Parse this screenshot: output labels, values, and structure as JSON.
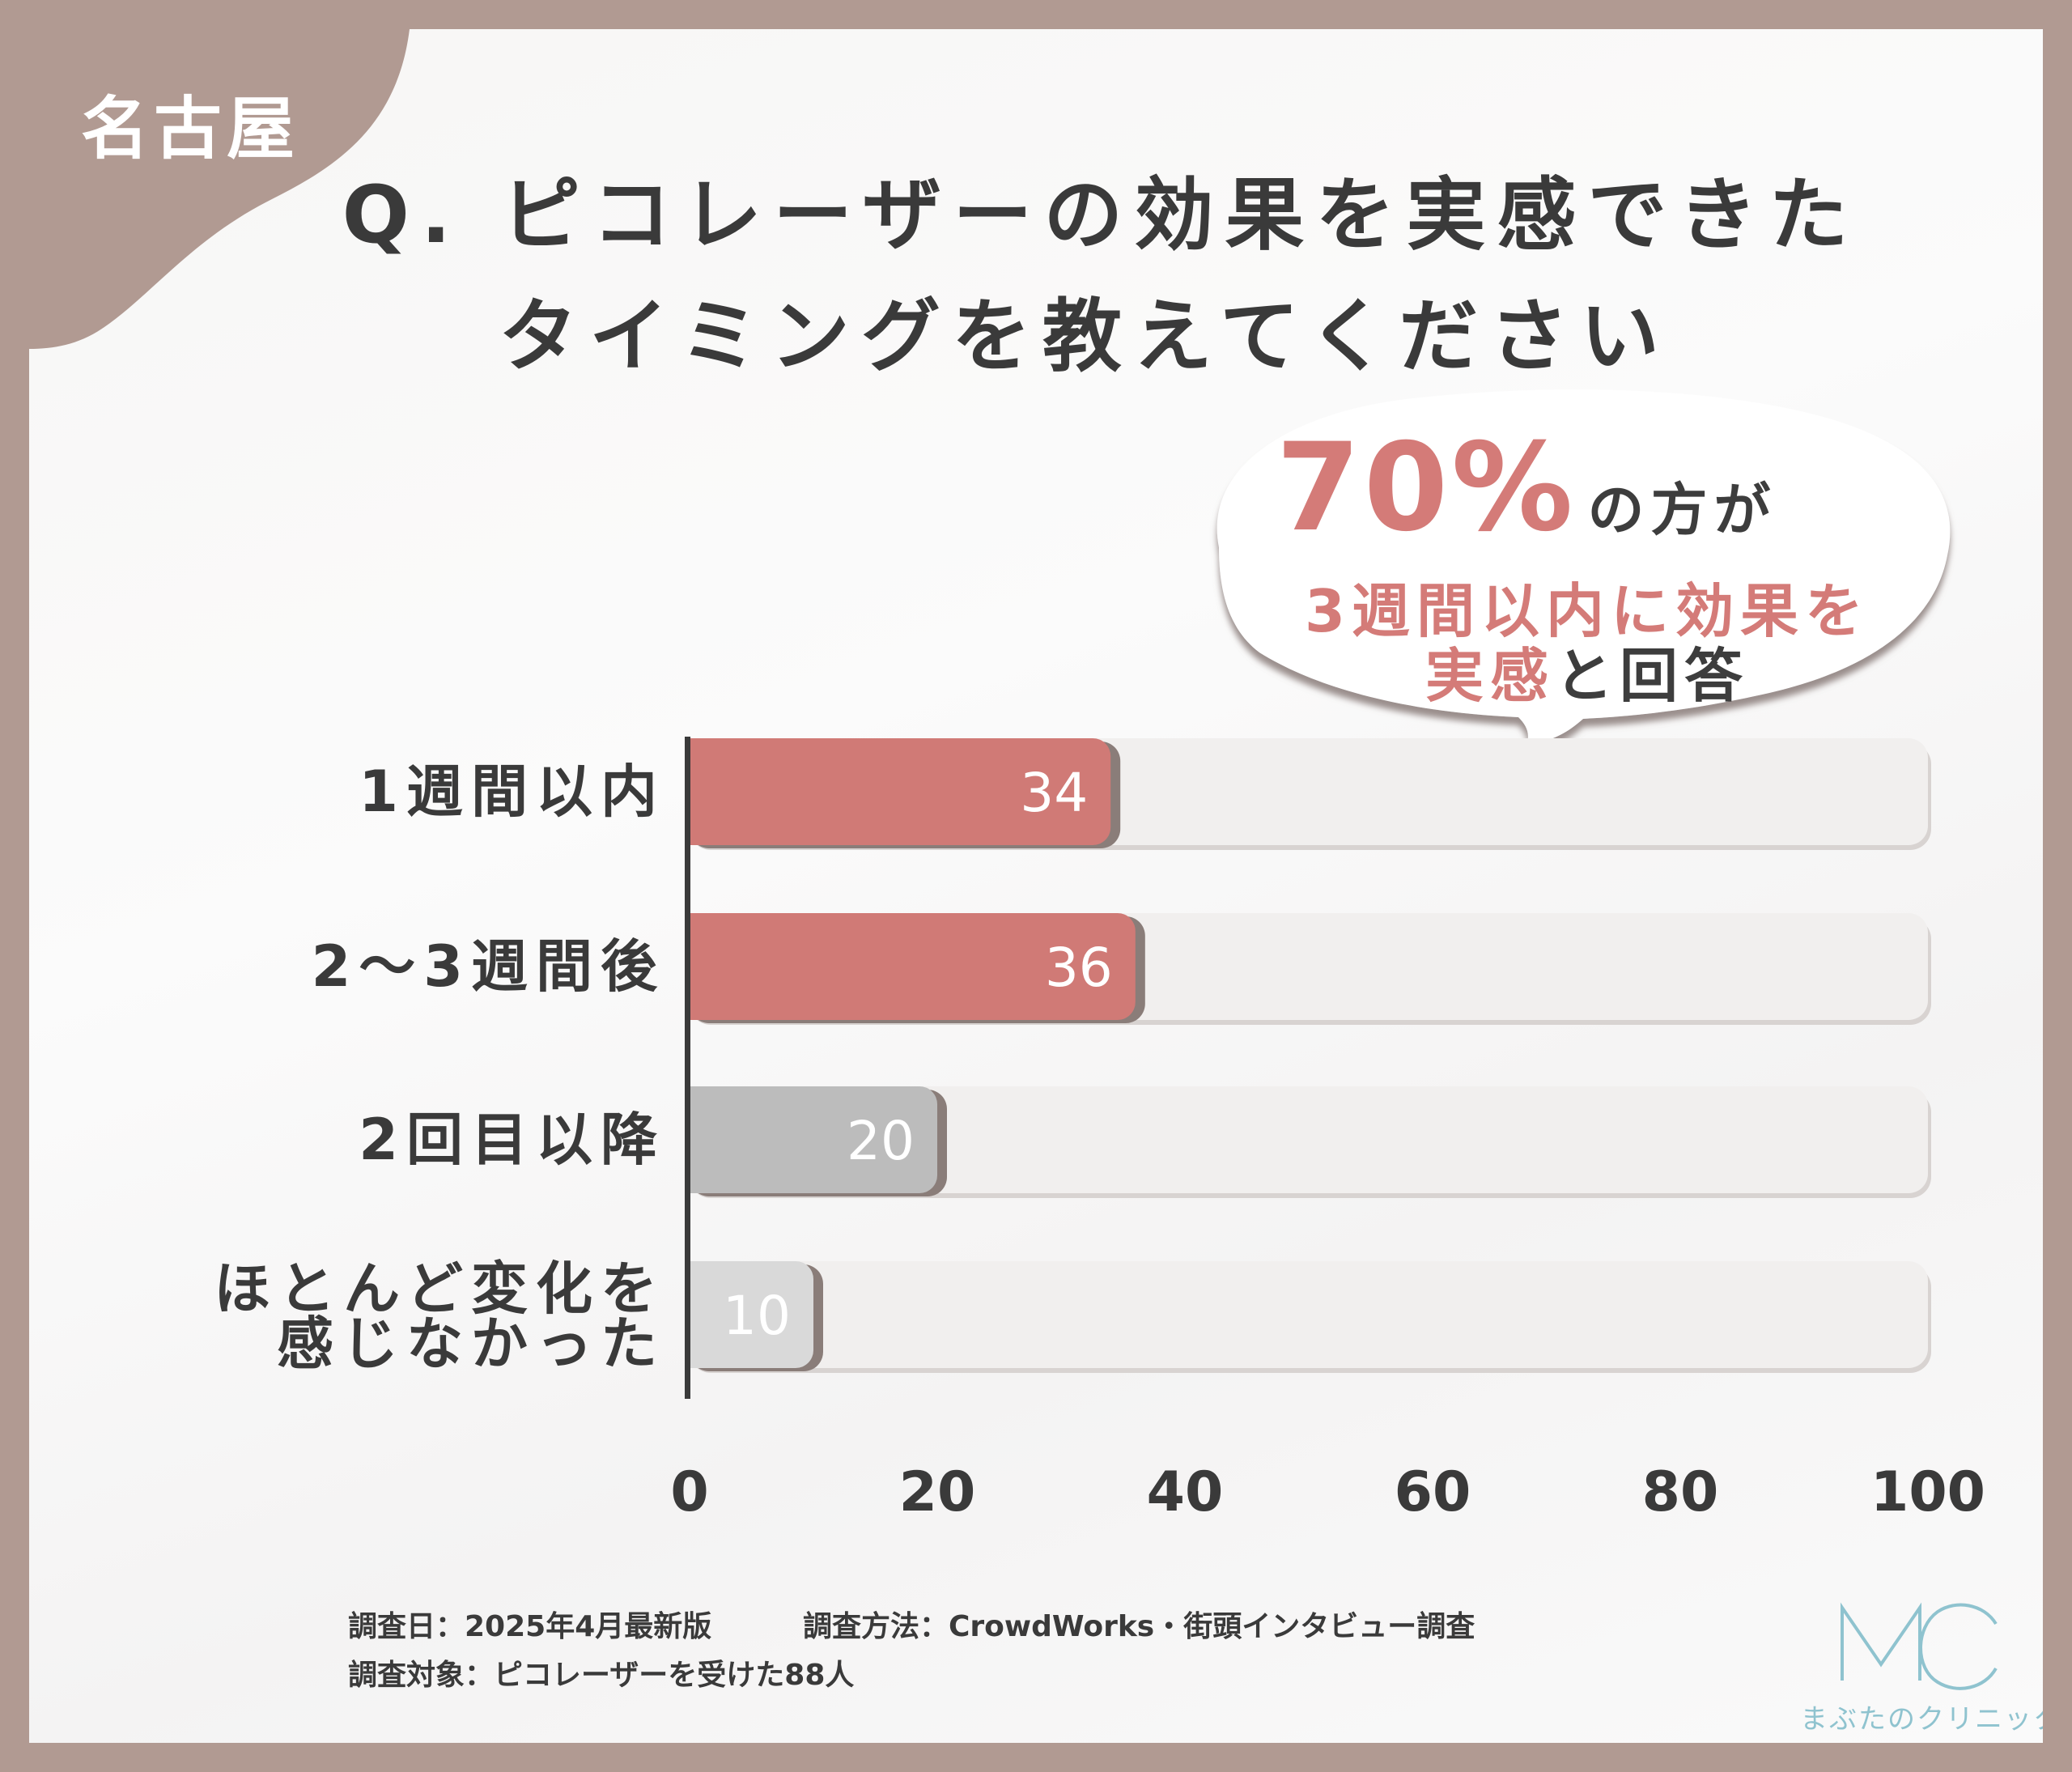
{
  "region_tag": "名古屋",
  "title": {
    "line1": "Q. ピコレーザーの効果を実感できた",
    "line2": "タイミングを教えてください"
  },
  "callout": {
    "percent": "70%",
    "percent_suffix": "の方が",
    "line2": "3週間以内に効果を",
    "line3_part1": "実感",
    "line3_part2": "と回答"
  },
  "chart_data": {
    "type": "bar",
    "orientation": "horizontal",
    "categories": [
      "1週間以内",
      "2〜3週間後",
      "2回目以降",
      "ほとんど変化を感じなかった"
    ],
    "category_label_lines": [
      [
        "1週間以内"
      ],
      [
        "2〜3週間後"
      ],
      [
        "2回目以降"
      ],
      [
        "ほとんど変化を",
        "感じなかった"
      ]
    ],
    "values": [
      34,
      36,
      20,
      10
    ],
    "bar_colors": [
      "#d07a76",
      "#d07a76",
      "#bcbcbc",
      "#d9d9d9"
    ],
    "value_labels": [
      "34",
      "36",
      "20",
      "10"
    ],
    "xlim": [
      0,
      100
    ],
    "x_ticks": [
      "0",
      "20",
      "40",
      "60",
      "80",
      "100"
    ],
    "title": "",
    "xlabel": "",
    "ylabel": "",
    "grid": false,
    "legend": "none"
  },
  "footer": {
    "date": "調査日：2025年4月最新版",
    "method": "調査方法：CrowdWorks・街頭インタビュー調査",
    "target": "調査対象：ピコレーザーを受けた88人"
  },
  "logo": {
    "mark": "MC",
    "name": "まぶたのクリニック",
    "color": "#8fc3cf"
  },
  "colors": {
    "frame": "#b19a92",
    "accent": "#d47b78",
    "text": "#3a3a3a"
  }
}
